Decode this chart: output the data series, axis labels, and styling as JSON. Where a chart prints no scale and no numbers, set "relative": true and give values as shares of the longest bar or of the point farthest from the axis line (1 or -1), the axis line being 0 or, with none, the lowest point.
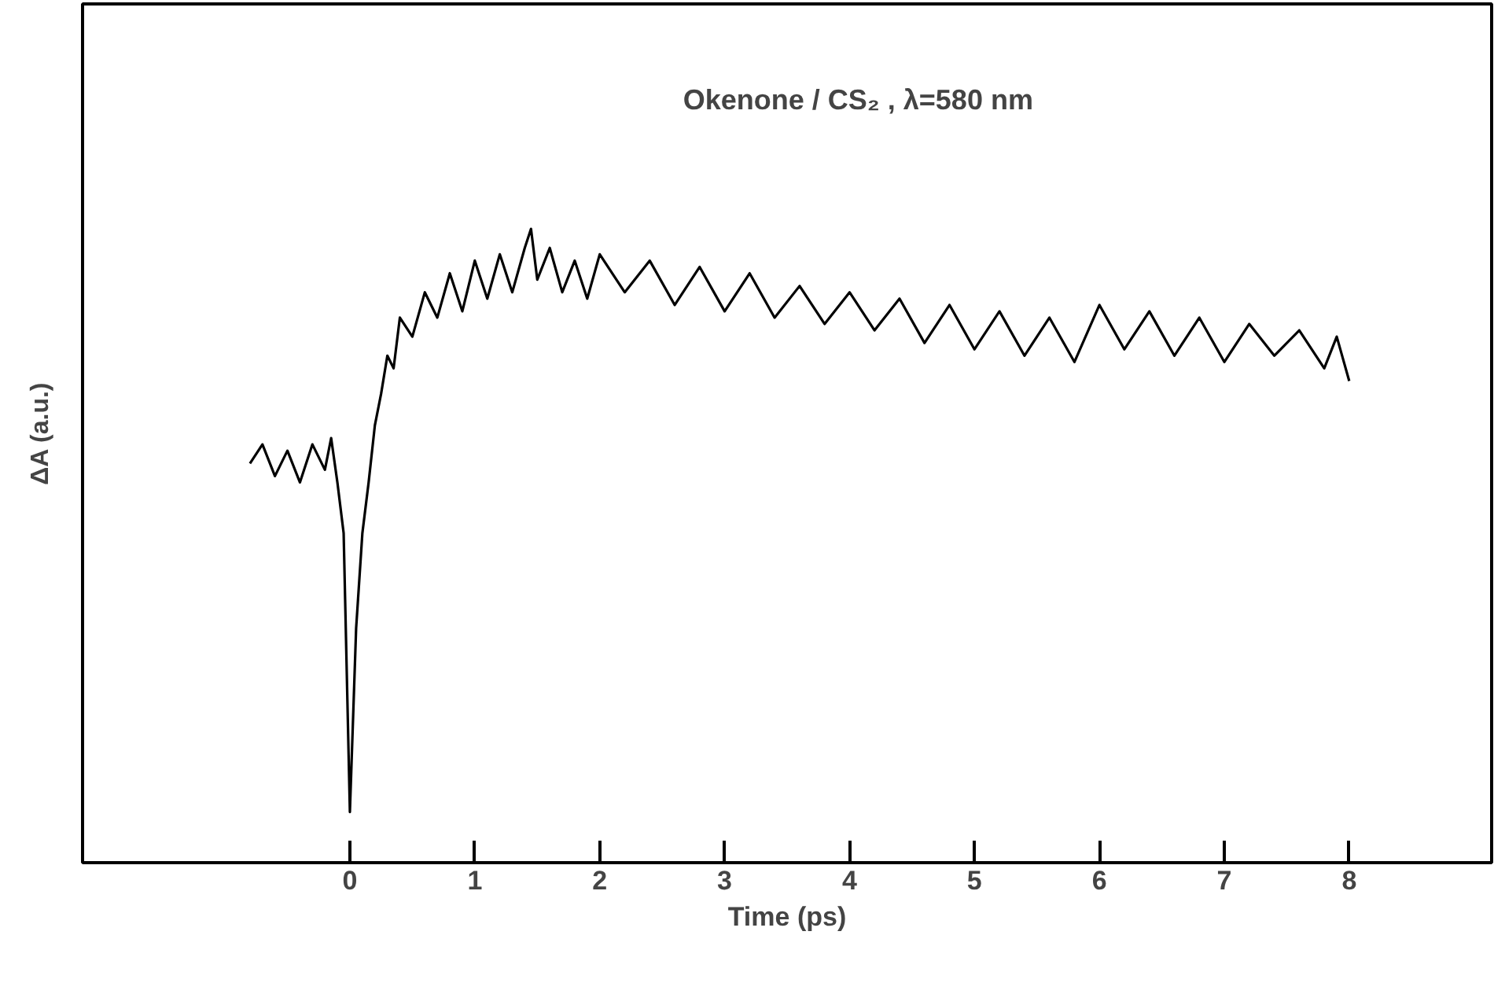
{
  "chart_data": {
    "type": "line",
    "title": "Okenone / CS₂ ,  λ=580 nm",
    "xlabel": "Time (ps)",
    "ylabel": "ΔA (a.u.)",
    "relative": true,
    "xlim": [
      -2.14,
      9.14
    ],
    "xticks": [
      0,
      1,
      2,
      3,
      4,
      5,
      6,
      7,
      8
    ],
    "marker": "none",
    "line_style": "solid",
    "series": [
      {
        "color": "#000000",
        "x": [
          -0.8,
          -0.7,
          -0.6,
          -0.5,
          -0.4,
          -0.3,
          -0.2,
          -0.15,
          -0.1,
          -0.05,
          0,
          0.05,
          0.1,
          0.15,
          0.2,
          0.25,
          0.3,
          0.35,
          0.4,
          0.5,
          0.6,
          0.7,
          0.8,
          0.9,
          1.0,
          1.1,
          1.2,
          1.3,
          1.4,
          1.45,
          1.5,
          1.6,
          1.7,
          1.8,
          1.9,
          2.0,
          2.2,
          2.4,
          2.6,
          2.8,
          3.0,
          3.2,
          3.4,
          3.6,
          3.8,
          4.0,
          4.2,
          4.4,
          4.6,
          4.8,
          5.0,
          5.2,
          5.4,
          5.6,
          5.8,
          6.0,
          6.2,
          6.4,
          6.6,
          6.8,
          7.0,
          7.2,
          7.4,
          7.6,
          7.8,
          7.9,
          8.0
        ],
        "values": [
          0.63,
          0.66,
          0.61,
          0.65,
          0.6,
          0.66,
          0.62,
          0.67,
          0.6,
          0.52,
          0.08,
          0.37,
          0.52,
          0.6,
          0.69,
          0.74,
          0.8,
          0.78,
          0.86,
          0.83,
          0.9,
          0.86,
          0.93,
          0.87,
          0.95,
          0.89,
          0.96,
          0.9,
          0.97,
          1.0,
          0.92,
          0.97,
          0.9,
          0.95,
          0.89,
          0.96,
          0.9,
          0.95,
          0.88,
          0.94,
          0.87,
          0.93,
          0.86,
          0.91,
          0.85,
          0.9,
          0.84,
          0.89,
          0.82,
          0.88,
          0.81,
          0.87,
          0.8,
          0.86,
          0.79,
          0.88,
          0.81,
          0.87,
          0.8,
          0.86,
          0.79,
          0.85,
          0.8,
          0.84,
          0.78,
          0.83,
          0.76
        ]
      }
    ]
  }
}
